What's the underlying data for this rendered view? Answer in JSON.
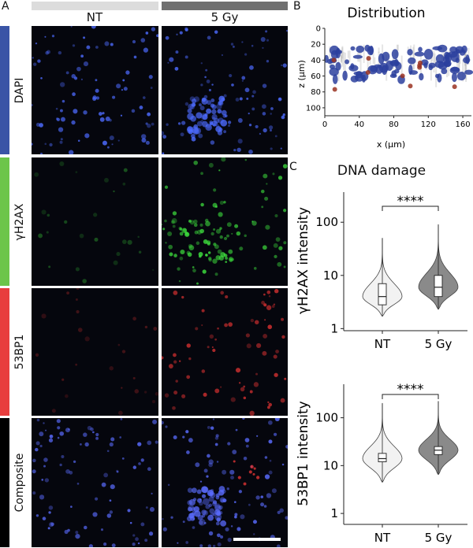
{
  "panels": {
    "a_letter": "A",
    "b_letter": "B",
    "c_letter": "C"
  },
  "panel_a": {
    "conditions": [
      "NT",
      "5 Gy"
    ],
    "condition_colors": [
      "#dcdcdc",
      "#707070"
    ],
    "rows": [
      {
        "label": "DAPI",
        "color": "#3a54a6",
        "tint": "#4d6bff"
      },
      {
        "label": "γH2AX",
        "color": "#6cc54a",
        "tint": "#3ddc3d"
      },
      {
        "label": "53BP1",
        "color": "#e83d3d",
        "tint": "#d23030"
      },
      {
        "label": "Composite",
        "color": "#000000",
        "tint": "#5a6cff"
      }
    ]
  },
  "panel_b": {
    "title": "Distribution",
    "xlabel": "x (µm)",
    "ylabel": "z (µm)",
    "xticks": [
      "0",
      "40",
      "80",
      "120",
      "160"
    ],
    "yticks": [
      "0",
      "20",
      "40",
      "60",
      "80",
      "100"
    ]
  },
  "panel_c": {
    "title": "DNA damage",
    "significance": "****",
    "categories": [
      "NT",
      "5 Gy"
    ],
    "fill_colors": [
      "#f2f2f2",
      "#8a8a8a"
    ]
  },
  "chart_data": [
    {
      "type": "violin",
      "ylabel": "γH2AX intensity",
      "yscale": "log",
      "ylim": [
        1.2,
        300
      ],
      "yticks": [
        "1",
        "10",
        "100"
      ],
      "categories": [
        "NT",
        "5 Gy"
      ],
      "series": [
        {
          "category": "NT",
          "min": 1.7,
          "q1": 2.8,
          "median": 4,
          "q3": 7,
          "max": 50
        },
        {
          "category": "5 Gy",
          "min": 2.3,
          "q1": 4,
          "median": 6,
          "q3": 10,
          "max": 90
        }
      ]
    },
    {
      "type": "violin",
      "ylabel": "53BP1 intensity",
      "yscale": "log",
      "ylim": [
        0.8,
        400
      ],
      "yticks": [
        "1",
        "10",
        "100"
      ],
      "categories": [
        "NT",
        "5 Gy"
      ],
      "series": [
        {
          "category": "NT",
          "min": 4.5,
          "q1": 12,
          "median": 14,
          "q3": 18,
          "max": 200
        },
        {
          "category": "5 Gy",
          "min": 6.5,
          "q1": 17,
          "median": 21,
          "q3": 25,
          "max": 220
        }
      ]
    }
  ]
}
